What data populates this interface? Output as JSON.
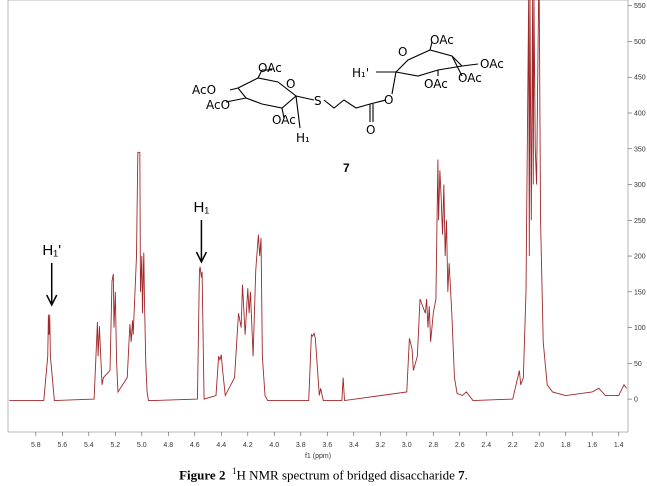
{
  "chart_data": {
    "type": "line",
    "x_label": "f1 (ppm)",
    "xlim": [
      6.01,
      1.33
    ],
    "ylim": [
      -46,
      558
    ],
    "xticks": [
      5.8,
      5.6,
      5.4,
      5.2,
      {
        "value": 5,
        "label": "5.0"
      },
      4.8,
      4.6,
      4.4,
      4.2,
      {
        "value": 4,
        "label": "4.0"
      },
      3.8,
      3.6,
      3.4,
      3.2,
      {
        "value": 3,
        "label": "3.0"
      },
      2.8,
      2.6,
      2.4,
      2.2,
      {
        "value": 2,
        "label": "2.0"
      },
      1.8,
      1.6,
      1.4
    ],
    "yticks": [
      0,
      50,
      100,
      150,
      200,
      250,
      300,
      350,
      400,
      450,
      500,
      550
    ],
    "x": [
      6.0,
      5.74,
      5.71,
      5.705,
      5.7,
      5.695,
      5.69,
      5.66,
      5.36,
      5.335,
      5.33,
      5.32,
      5.315,
      5.3,
      5.29,
      5.24,
      5.225,
      5.215,
      5.21,
      5.2,
      5.19,
      5.18,
      5.11,
      5.09,
      5.08,
      5.07,
      5.065,
      5.04,
      5.03,
      5.015,
      5.01,
      5.0,
      4.995,
      4.985,
      4.98,
      4.97,
      4.96,
      4.95,
      4.92,
      4.58,
      4.565,
      4.56,
      4.55,
      4.545,
      4.53,
      4.44,
      4.42,
      4.41,
      4.4,
      4.39,
      4.37,
      4.3,
      4.27,
      4.25,
      4.24,
      4.22,
      4.2,
      4.19,
      4.18,
      4.16,
      4.14,
      4.12,
      4.11,
      4.1,
      4.09,
      4.07,
      4.05,
      3.74,
      3.72,
      3.71,
      3.7,
      3.69,
      3.66,
      3.65,
      3.63,
      3.49,
      3.48,
      3.47,
      3.0,
      2.98,
      2.96,
      2.95,
      2.92,
      2.9,
      2.86,
      2.85,
      2.84,
      2.83,
      2.82,
      2.8,
      2.78,
      2.765,
      2.76,
      2.75,
      2.74,
      2.73,
      2.72,
      2.71,
      2.7,
      2.69,
      2.68,
      2.66,
      2.64,
      2.62,
      2.58,
      2.55,
      2.5,
      2.2,
      2.15,
      2.14,
      2.12,
      2.1,
      2.08,
      2.075,
      2.07,
      2.06,
      2.05,
      2.045,
      2.04,
      2.03,
      2.02,
      2.005,
      2.0,
      1.99,
      1.97,
      1.94,
      1.9,
      1.8,
      1.6,
      1.55,
      1.5,
      1.4,
      1.36,
      1.34
    ],
    "series": [
      {
        "color": "#a0282a",
        "values": [
          -2,
          -2,
          60,
          118,
          90,
          118,
          60,
          -2,
          0,
          108,
          60,
          102,
          80,
          20,
          30,
          40,
          165,
          175,
          100,
          150,
          50,
          10,
          30,
          105,
          80,
          110,
          90,
          200,
          345,
          345,
          150,
          200,
          120,
          205,
          140,
          50,
          10,
          -2,
          -2,
          0,
          180,
          185,
          170,
          178,
          0,
          5,
          60,
          55,
          62,
          40,
          5,
          30,
          120,
          100,
          160,
          90,
          155,
          120,
          150,
          60,
          180,
          230,
          200,
          225,
          60,
          5,
          -2,
          -2,
          90,
          88,
          92,
          85,
          5,
          15,
          -2,
          -2,
          30,
          -2,
          10,
          85,
          70,
          40,
          60,
          140,
          120,
          140,
          100,
          130,
          80,
          120,
          140,
          335,
          250,
          320,
          280,
          230,
          300,
          200,
          250,
          150,
          190,
          120,
          30,
          8,
          5,
          10,
          -2,
          0,
          40,
          20,
          30,
          150,
          560,
          200,
          560,
          250,
          560,
          300,
          560,
          350,
          300,
          560,
          560,
          250,
          80,
          20,
          10,
          5,
          10,
          15,
          5,
          5,
          20,
          15
        ]
      }
    ],
    "annotations": [
      {
        "text": "H₁'",
        "x": 5.68
      },
      {
        "text": "H₁",
        "x": 4.55
      }
    ],
    "structure_labels": [
      "OAc",
      "AcO",
      "AcO",
      "OAc",
      "O",
      "H₁",
      "S",
      "O",
      "O",
      "H₁'",
      "O",
      "OAc",
      "OAc",
      "OAc",
      "OAc"
    ],
    "compound": "7",
    "caption": {
      "label": "Figure 2",
      "superscript": "1",
      "text": "H NMR spectrum of bridged disaccharide ",
      "compound": "7",
      "end": "."
    }
  }
}
